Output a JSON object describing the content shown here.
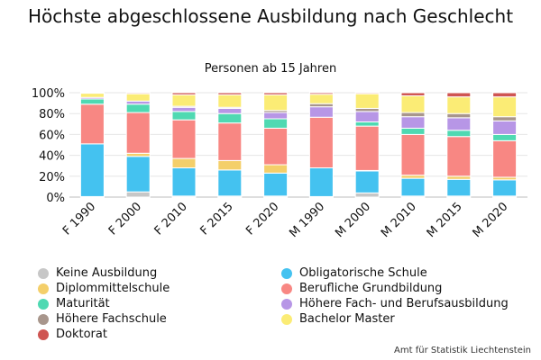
{
  "chart_data": {
    "type": "bar",
    "stacked": true,
    "title": "Höchste abgeschlossene Ausbildung nach Geschlecht",
    "subtitle": "Personen ab 15 Jahren",
    "source": "Amt für Statistik Liechtenstein",
    "categories": [
      "F 1990",
      "F 2000",
      "F 2010",
      "F 2015",
      "F 2020",
      "M 1990",
      "M 2000",
      "M 2010",
      "M 2015",
      "M 2020"
    ],
    "ylim": [
      0,
      100
    ],
    "yticks": [
      "0%",
      "20%",
      "40%",
      "60%",
      "80%",
      "100%"
    ],
    "grid": true,
    "legend_position": "bottom",
    "series": [
      {
        "name": "Keine Ausbildung",
        "color": "#c7c7c7",
        "values": [
          0.5,
          5,
          1,
          1,
          1,
          0.5,
          4,
          1,
          1,
          1
        ]
      },
      {
        "name": "Obligatorische Schule",
        "color": "#44c2f0",
        "values": [
          50.5,
          34,
          27,
          25,
          22,
          27.5,
          21,
          17,
          16,
          15.5
        ]
      },
      {
        "name": "Diplommittelschule",
        "color": "#f4cf6a",
        "values": [
          0,
          3,
          9,
          9,
          8,
          0,
          0.5,
          3,
          3,
          2.5
        ]
      },
      {
        "name": "Berufliche Grundbildung",
        "color": "#f88783",
        "values": [
          38,
          39,
          37,
          36,
          35,
          48.5,
          42.5,
          39,
          38,
          35
        ]
      },
      {
        "name": "Maturität",
        "color": "#4fd9b2",
        "values": [
          5,
          8,
          8,
          9,
          9,
          0,
          4,
          6,
          6,
          6
        ]
      },
      {
        "name": "Höhere Fach- und Berufsausbildung",
        "color": "#b796e6",
        "values": [
          1.5,
          3,
          4,
          5,
          6,
          10,
          10,
          11,
          12,
          13
        ]
      },
      {
        "name": "Höhere Fachschule",
        "color": "#a8968c",
        "values": [
          0,
          0,
          1,
          1,
          2,
          3,
          3,
          4,
          4,
          4
        ]
      },
      {
        "name": "Bachelor Master",
        "color": "#fbec75",
        "values": [
          4,
          7,
          11,
          12,
          15,
          9,
          14,
          16,
          16,
          19
        ]
      },
      {
        "name": "Doktorat",
        "color": "#cf5552",
        "values": [
          0.5,
          1,
          2,
          2,
          2,
          1.5,
          1,
          3,
          4,
          4
        ]
      }
    ]
  }
}
